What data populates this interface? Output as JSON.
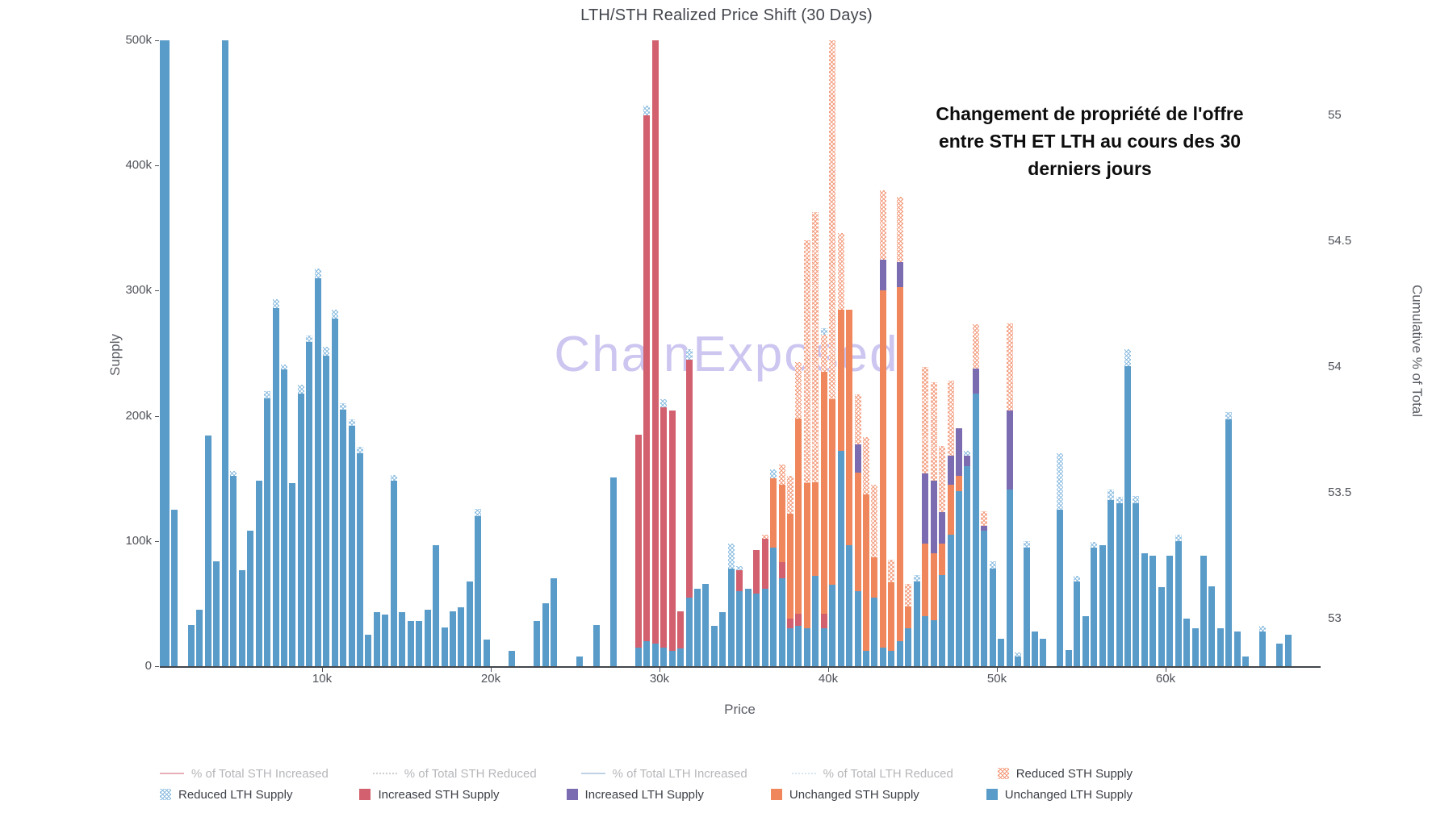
{
  "annotation": {
    "line1": "Changement de propriété de l'offre",
    "line2": "entre STH ET LTH au cours des 30",
    "line3": "derniers jours"
  },
  "watermark": {
    "text": "ChainExposed"
  },
  "chart_data": {
    "type": "bar",
    "title": "LTH/STH Realized Price Shift (30 Days)",
    "xlabel": "Price",
    "ylabel_left": "Supply",
    "ylabel_right": "Cumulative % of Total",
    "x_ticks": [
      {
        "label": "10k",
        "value": 10
      },
      {
        "label": "20k",
        "value": 20
      },
      {
        "label": "30k",
        "value": 30
      },
      {
        "label": "40k",
        "value": 40
      },
      {
        "label": "50k",
        "value": 50
      },
      {
        "label": "60k",
        "value": 60
      }
    ],
    "xlim_k": [
      0.4,
      69.1
    ],
    "y_ticks_left": [
      {
        "label": "0",
        "value": 0
      },
      {
        "label": "100k",
        "value": 100
      },
      {
        "label": "200k",
        "value": 200
      },
      {
        "label": "300k",
        "value": 300
      },
      {
        "label": "400k",
        "value": 400
      },
      {
        "label": "500k",
        "value": 500
      }
    ],
    "ylim_left": [
      0,
      500000
    ],
    "y_ticks_right": [
      {
        "label": "53",
        "value": 53
      },
      {
        "label": "53.5",
        "value": 53.5
      },
      {
        "label": "54",
        "value": 54
      },
      {
        "label": "54.5",
        "value": 54.5
      },
      {
        "label": "55",
        "value": 55
      }
    ],
    "ylim_right": [
      52.81,
      55.3
    ],
    "grid": false,
    "legend_position": "bottom",
    "series_stack_order_bottom_to_top": [
      "Unchanged LTH Supply",
      "Increased STH Supply",
      "Unchanged STH Supply",
      "Increased LTH Supply",
      "Reduced STH Supply",
      "Reduced LTH Supply"
    ],
    "series_colors": {
      "u_lth": "#5a9cc9",
      "i_sth": "#d2606e",
      "u_sth": "#f0875c",
      "i_lth": "#7b6cb1",
      "r_sth": "#f29878 crosshatch",
      "r_lth": "#8bbce0 crosshatch"
    },
    "bars_note": "each bar = [price_in_k, unchanged_LTH, increased_STH, unchanged_STH, increased_LTH, reduced_STH, reduced_LTH] supply in thousands; totals over 500k are clipped at axis top",
    "bars": [
      [
        0.25,
        500,
        0,
        0,
        0,
        0,
        0
      ],
      [
        0.75,
        500,
        0,
        0,
        0,
        0,
        0
      ],
      [
        1.25,
        125,
        0,
        0,
        0,
        0,
        0
      ],
      [
        2.25,
        33,
        0,
        0,
        0,
        0,
        0
      ],
      [
        2.75,
        45,
        0,
        0,
        0,
        0,
        0
      ],
      [
        3.25,
        184,
        0,
        0,
        0,
        0,
        0
      ],
      [
        3.75,
        84,
        0,
        0,
        0,
        0,
        0
      ],
      [
        4.25,
        500,
        0,
        0,
        0,
        0,
        0
      ],
      [
        4.75,
        152,
        0,
        0,
        0,
        0,
        4
      ],
      [
        5.25,
        77,
        0,
        0,
        0,
        0,
        0
      ],
      [
        5.75,
        108,
        0,
        0,
        0,
        0,
        0
      ],
      [
        6.25,
        148,
        0,
        0,
        0,
        0,
        0
      ],
      [
        6.75,
        214,
        0,
        0,
        0,
        0,
        6
      ],
      [
        7.25,
        286,
        0,
        0,
        0,
        0,
        7
      ],
      [
        7.75,
        237,
        0,
        0,
        0,
        0,
        4
      ],
      [
        8.25,
        146,
        0,
        0,
        0,
        0,
        0
      ],
      [
        8.75,
        218,
        0,
        0,
        0,
        0,
        7
      ],
      [
        9.25,
        259,
        0,
        0,
        0,
        0,
        5
      ],
      [
        9.75,
        310,
        0,
        0,
        0,
        0,
        8
      ],
      [
        10.25,
        248,
        0,
        0,
        0,
        0,
        7
      ],
      [
        10.75,
        278,
        0,
        0,
        0,
        0,
        7
      ],
      [
        11.25,
        205,
        0,
        0,
        0,
        0,
        5
      ],
      [
        11.75,
        192,
        0,
        0,
        0,
        0,
        5
      ],
      [
        12.25,
        170,
        0,
        0,
        0,
        0,
        5
      ],
      [
        12.75,
        25,
        0,
        0,
        0,
        0,
        0
      ],
      [
        13.25,
        43,
        0,
        0,
        0,
        0,
        0
      ],
      [
        13.75,
        41,
        0,
        0,
        0,
        0,
        0
      ],
      [
        14.25,
        148,
        0,
        0,
        0,
        0,
        5
      ],
      [
        14.75,
        43,
        0,
        0,
        0,
        0,
        0
      ],
      [
        15.25,
        36,
        0,
        0,
        0,
        0,
        0
      ],
      [
        15.75,
        36,
        0,
        0,
        0,
        0,
        0
      ],
      [
        16.25,
        45,
        0,
        0,
        0,
        0,
        0
      ],
      [
        16.75,
        97,
        0,
        0,
        0,
        0,
        0
      ],
      [
        17.25,
        31,
        0,
        0,
        0,
        0,
        0
      ],
      [
        17.75,
        44,
        0,
        0,
        0,
        0,
        0
      ],
      [
        18.25,
        47,
        0,
        0,
        0,
        0,
        0
      ],
      [
        18.75,
        68,
        0,
        0,
        0,
        0,
        0
      ],
      [
        19.25,
        120,
        0,
        0,
        0,
        0,
        6
      ],
      [
        19.75,
        21,
        0,
        0,
        0,
        0,
        0
      ],
      [
        21.25,
        12,
        0,
        0,
        0,
        0,
        0
      ],
      [
        22.75,
        36,
        0,
        0,
        0,
        0,
        0
      ],
      [
        23.25,
        50,
        0,
        0,
        0,
        0,
        0
      ],
      [
        23.75,
        70,
        0,
        0,
        0,
        0,
        0
      ],
      [
        25.25,
        8,
        0,
        0,
        0,
        0,
        0
      ],
      [
        26.25,
        33,
        0,
        0,
        0,
        0,
        0
      ],
      [
        27.25,
        151,
        0,
        0,
        0,
        0,
        0
      ],
      [
        28.75,
        15,
        170,
        0,
        0,
        0,
        0
      ],
      [
        29.25,
        20,
        420,
        0,
        0,
        0,
        8
      ],
      [
        29.75,
        18,
        482,
        0,
        0,
        0,
        0
      ],
      [
        30.25,
        15,
        192,
        0,
        0,
        0,
        6
      ],
      [
        30.75,
        12,
        192,
        0,
        0,
        0,
        0
      ],
      [
        31.25,
        14,
        30,
        0,
        0,
        0,
        0
      ],
      [
        31.75,
        55,
        190,
        0,
        0,
        0,
        8
      ],
      [
        32.25,
        62,
        0,
        0,
        0,
        0,
        0
      ],
      [
        32.75,
        66,
        0,
        0,
        0,
        0,
        0
      ],
      [
        33.25,
        32,
        0,
        0,
        0,
        0,
        0
      ],
      [
        33.75,
        43,
        0,
        0,
        0,
        0,
        0
      ],
      [
        34.25,
        78,
        0,
        0,
        0,
        0,
        20
      ],
      [
        34.75,
        60,
        17,
        0,
        0,
        0,
        3
      ],
      [
        35.25,
        62,
        0,
        0,
        0,
        0,
        0
      ],
      [
        35.75,
        58,
        35,
        0,
        0,
        0,
        0
      ],
      [
        36.25,
        62,
        40,
        0,
        0,
        3,
        0
      ],
      [
        36.75,
        95,
        0,
        55,
        0,
        0,
        7
      ],
      [
        37.25,
        70,
        13,
        62,
        0,
        16,
        0
      ],
      [
        37.75,
        30,
        8,
        84,
        0,
        30,
        0
      ],
      [
        38.25,
        32,
        10,
        156,
        0,
        45,
        0
      ],
      [
        38.75,
        30,
        0,
        116,
        0,
        194,
        0
      ],
      [
        39.25,
        72,
        0,
        75,
        0,
        216,
        0
      ],
      [
        39.75,
        30,
        12,
        193,
        0,
        30,
        5
      ],
      [
        40.25,
        65,
        0,
        148,
        0,
        287,
        0
      ],
      [
        40.75,
        172,
        0,
        113,
        0,
        61,
        0
      ],
      [
        41.25,
        97,
        0,
        188,
        0,
        0,
        0
      ],
      [
        41.75,
        60,
        0,
        95,
        22,
        40,
        0
      ],
      [
        42.25,
        12,
        0,
        125,
        0,
        46,
        0
      ],
      [
        42.75,
        55,
        0,
        32,
        0,
        58,
        0
      ],
      [
        43.25,
        15,
        0,
        285,
        25,
        55,
        0
      ],
      [
        43.75,
        12,
        0,
        55,
        0,
        18,
        0
      ],
      [
        44.25,
        20,
        0,
        283,
        20,
        52,
        0
      ],
      [
        44.75,
        30,
        0,
        18,
        0,
        18,
        0
      ],
      [
        45.25,
        68,
        0,
        0,
        0,
        0,
        5
      ],
      [
        45.75,
        40,
        0,
        58,
        56,
        85,
        0
      ],
      [
        46.25,
        37,
        0,
        53,
        58,
        79,
        0
      ],
      [
        46.75,
        73,
        0,
        25,
        25,
        53,
        0
      ],
      [
        47.25,
        105,
        0,
        40,
        23,
        60,
        0
      ],
      [
        47.75,
        140,
        0,
        12,
        38,
        0,
        0
      ],
      [
        48.25,
        160,
        0,
        0,
        8,
        0,
        4
      ],
      [
        48.75,
        218,
        0,
        0,
        20,
        35,
        0
      ],
      [
        49.25,
        108,
        0,
        0,
        4,
        12,
        0
      ],
      [
        49.75,
        78,
        0,
        0,
        0,
        0,
        6
      ],
      [
        50.25,
        22,
        0,
        0,
        0,
        0,
        0
      ],
      [
        50.75,
        141,
        0,
        0,
        63,
        70,
        0
      ],
      [
        51.25,
        8,
        0,
        0,
        0,
        0,
        3
      ],
      [
        51.75,
        95,
        0,
        0,
        0,
        0,
        5
      ],
      [
        52.25,
        28,
        0,
        0,
        0,
        0,
        0
      ],
      [
        52.75,
        22,
        0,
        0,
        0,
        0,
        0
      ],
      [
        53.75,
        125,
        0,
        0,
        0,
        0,
        45
      ],
      [
        54.25,
        13,
        0,
        0,
        0,
        0,
        0
      ],
      [
        54.75,
        68,
        0,
        0,
        0,
        0,
        4
      ],
      [
        55.25,
        40,
        0,
        0,
        0,
        0,
        0
      ],
      [
        55.75,
        95,
        0,
        0,
        0,
        0,
        4
      ],
      [
        56.25,
        97,
        0,
        0,
        0,
        0,
        0
      ],
      [
        56.75,
        133,
        0,
        0,
        0,
        0,
        8
      ],
      [
        57.25,
        130,
        0,
        0,
        0,
        0,
        5
      ],
      [
        57.75,
        240,
        0,
        0,
        0,
        0,
        13
      ],
      [
        58.25,
        130,
        0,
        0,
        0,
        0,
        6
      ],
      [
        58.75,
        90,
        0,
        0,
        0,
        0,
        0
      ],
      [
        59.25,
        88,
        0,
        0,
        0,
        0,
        0
      ],
      [
        59.75,
        63,
        0,
        0,
        0,
        0,
        0
      ],
      [
        60.25,
        88,
        0,
        0,
        0,
        0,
        0
      ],
      [
        60.75,
        100,
        0,
        0,
        0,
        0,
        5
      ],
      [
        61.25,
        38,
        0,
        0,
        0,
        0,
        0
      ],
      [
        61.75,
        30,
        0,
        0,
        0,
        0,
        0
      ],
      [
        62.25,
        88,
        0,
        0,
        0,
        0,
        0
      ],
      [
        62.75,
        64,
        0,
        0,
        0,
        0,
        0
      ],
      [
        63.25,
        30,
        0,
        0,
        0,
        0,
        0
      ],
      [
        63.75,
        197,
        0,
        0,
        0,
        0,
        6
      ],
      [
        64.25,
        28,
        0,
        0,
        0,
        0,
        0
      ],
      [
        64.75,
        8,
        0,
        0,
        0,
        0,
        0
      ],
      [
        65.75,
        28,
        0,
        0,
        0,
        0,
        4
      ],
      [
        66.75,
        18,
        0,
        0,
        0,
        0,
        0
      ],
      [
        67.25,
        25,
        0,
        0,
        0,
        0,
        0
      ]
    ]
  },
  "legend": {
    "row1": [
      {
        "label": "% of Total STH Increased",
        "swatch": "line",
        "color": "#d2606e",
        "dimmed": true
      },
      {
        "label": "% of Total STH Reduced",
        "swatch": "dotline",
        "color": "#9b9ea6",
        "dimmed": true
      },
      {
        "label": "% of Total LTH Increased",
        "swatch": "line",
        "color": "#7fa7c9",
        "dimmed": true
      },
      {
        "label": "% of Total LTH Reduced",
        "swatch": "dotline",
        "color": "#afcfe8",
        "dimmed": true
      },
      {
        "label": "Reduced STH Supply",
        "swatch": "patpink",
        "color": "#f29878",
        "dimmed": false
      }
    ],
    "row2": [
      {
        "label": "Reduced LTH Supply",
        "swatch": "patblue",
        "color": "#8bbce0",
        "dimmed": false
      },
      {
        "label": "Increased STH Supply",
        "swatch": "square",
        "color": "#d2606e",
        "dimmed": false
      },
      {
        "label": "Increased LTH Supply",
        "swatch": "square",
        "color": "#7b6cb1",
        "dimmed": false
      },
      {
        "label": "Unchanged STH Supply",
        "swatch": "square",
        "color": "#f0875c",
        "dimmed": false
      },
      {
        "label": "Unchanged LTH Supply",
        "swatch": "square",
        "color": "#5a9cc9",
        "dimmed": false
      }
    ]
  }
}
